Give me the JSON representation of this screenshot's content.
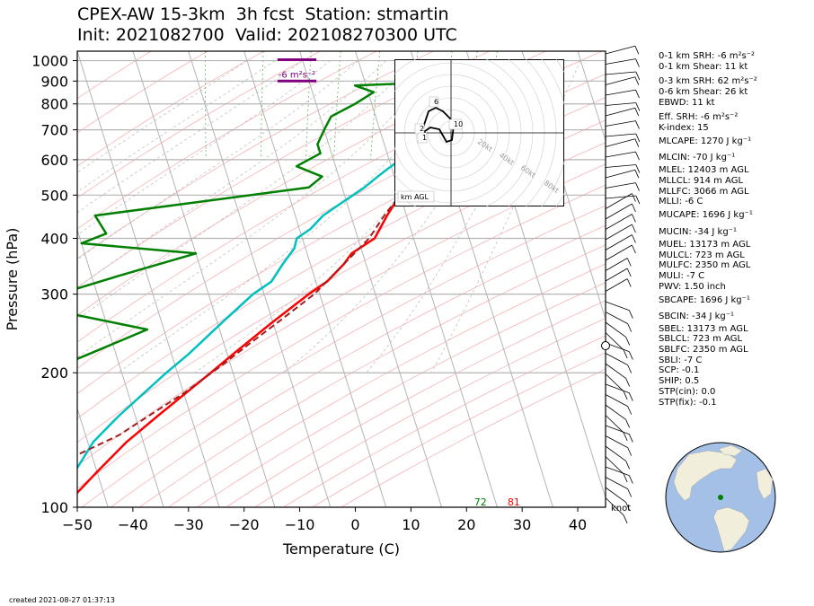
{
  "title_line1": "CPEX-AW 15-3km  3h fcst  Station: stmartin",
  "title_line2": "Init: 2021082700  Valid: 202108270300 UTC",
  "footer": "created 2021-08-27 01:37:13",
  "diagnostics": [
    "0-1 km SRH: -6 m²s⁻²",
    "0-1 km Shear: 11 kt",
    "0-3 km SRH: 62 m²s⁻²",
    "0-6 km Shear: 26 kt",
    "EBWD: 11 kt",
    "Eff. SRH: -6 m²s⁻²",
    "K-index: 15",
    "MLCAPE: 1270 J kg⁻¹",
    "MLCIN: -70 J kg⁻¹",
    "MLEL: 12403 m AGL",
    "MLLCL: 914 m AGL",
    "MLLFC: 3066 m AGL",
    "MLLI: -6 C",
    "MUCAPE: 1696 J kg⁻¹",
    "MUCIN: -34 J kg⁻¹",
    "MUEL: 13173 m AGL",
    "MULCL: 723 m AGL",
    "MULFC: 2350 m AGL",
    "MULI: -7 C",
    "PWV: 1.50 inch",
    "SBCAPE: 1696 J kg⁻¹",
    "SBCIN: -34 J kg⁻¹",
    "SBEL: 13173 m AGL",
    "SBLCL: 723 m AGL",
    "SBLFC: 2350 m AGL",
    "SBLI: -7 C",
    "SCP: -0.1",
    "SHIP: 0.5",
    "STP(cin): 0.0",
    "STP(fix): -0.1"
  ],
  "chart_data": {
    "type": "line",
    "subtype": "skew-T log-p diagram",
    "xlabel": "Temperature (C)",
    "ylabel": "Pressure (hPa)",
    "xlim": [
      -50,
      45
    ],
    "ylim": [
      1050,
      100
    ],
    "y_scale": "log",
    "x_ticks": [
      -50,
      -40,
      -30,
      -20,
      -10,
      0,
      10,
      20,
      30,
      40
    ],
    "y_ticks": [
      100,
      200,
      300,
      400,
      500,
      600,
      700,
      800,
      900,
      1000
    ],
    "skew_deg_per_log10_p": 25,
    "grid": true,
    "series": [
      {
        "role": "temperature",
        "color": "#ff0000",
        "points": [
          [
            30,
            1000
          ],
          [
            27.5,
            950
          ],
          [
            24.5,
            920
          ],
          [
            22,
            900
          ],
          [
            24,
            880
          ],
          [
            21.5,
            850
          ],
          [
            19,
            800
          ],
          [
            16,
            750
          ],
          [
            13,
            700
          ],
          [
            8,
            650
          ],
          [
            5,
            600
          ],
          [
            2,
            550
          ],
          [
            0,
            500
          ],
          [
            -3.5,
            450
          ],
          [
            -7,
            400
          ],
          [
            -12,
            370
          ],
          [
            -14,
            350
          ],
          [
            -18,
            320
          ],
          [
            -22,
            300
          ],
          [
            -30,
            260
          ],
          [
            -39,
            220
          ],
          [
            -44,
            200
          ],
          [
            -56,
            160
          ],
          [
            -63,
            140
          ],
          [
            -70,
            120
          ],
          [
            -78,
            100
          ]
        ]
      },
      {
        "role": "dewpoint",
        "color": "#00c0c0",
        "points": [
          [
            24,
            1000
          ],
          [
            22,
            950
          ],
          [
            18,
            900
          ],
          [
            12,
            880
          ],
          [
            12.5,
            850
          ],
          [
            11,
            800
          ],
          [
            9,
            750
          ],
          [
            6,
            700
          ],
          [
            3,
            650
          ],
          [
            2,
            600
          ],
          [
            -1,
            570
          ],
          [
            -3,
            550
          ],
          [
            -6,
            520
          ],
          [
            -11,
            480
          ],
          [
            -15,
            450
          ],
          [
            -18,
            420
          ],
          [
            -21,
            400
          ],
          [
            -22,
            380
          ],
          [
            -25,
            350
          ],
          [
            -28,
            320
          ],
          [
            -32,
            300
          ],
          [
            -39,
            260
          ],
          [
            -47,
            220
          ],
          [
            -52,
            200
          ],
          [
            -63,
            160
          ],
          [
            -69,
            140
          ],
          [
            -74,
            120
          ],
          [
            -76,
            105
          ],
          [
            -77,
            100
          ]
        ]
      },
      {
        "role": "parcel",
        "color": "#a02020",
        "dashed": true,
        "points": [
          [
            32,
            1000
          ],
          [
            28,
            950
          ],
          [
            25,
            900
          ],
          [
            22.5,
            850
          ],
          [
            20,
            800
          ],
          [
            17,
            750
          ],
          [
            14,
            700
          ],
          [
            10,
            650
          ],
          [
            7,
            600
          ],
          [
            3.5,
            550
          ],
          [
            0,
            500
          ],
          [
            -4,
            450
          ],
          [
            -8,
            400
          ],
          [
            -14,
            350
          ],
          [
            -21,
            300
          ],
          [
            -29,
            260
          ],
          [
            -36,
            230
          ],
          [
            -41,
            210
          ],
          [
            -50,
            180
          ],
          [
            -64,
            145
          ],
          [
            -80,
            120
          ],
          [
            -96,
            100
          ]
        ]
      },
      {
        "role": "wetbulb",
        "color": "#008000",
        "points": [
          [
            22,
            1000
          ],
          [
            21,
            980
          ],
          [
            20,
            950
          ],
          [
            18,
            900
          ],
          [
            -2,
            880
          ],
          [
            1,
            850
          ],
          [
            -3,
            800
          ],
          [
            -8,
            750
          ],
          [
            -10,
            700
          ],
          [
            -12,
            650
          ],
          [
            -12,
            620
          ],
          [
            -17,
            580
          ],
          [
            -13,
            550
          ],
          [
            -16,
            520
          ],
          [
            -56,
            450
          ],
          [
            -55,
            410
          ],
          [
            -60,
            390
          ],
          [
            -40,
            370
          ],
          [
            -55,
            330
          ],
          [
            -67,
            300
          ],
          [
            -71,
            280
          ],
          [
            -53,
            250
          ],
          [
            -65,
            220
          ],
          [
            -74,
            200
          ],
          [
            -80,
            175
          ],
          [
            -86,
            160
          ],
          [
            -93,
            130
          ],
          [
            -98,
            110
          ],
          [
            -100,
            100
          ]
        ]
      }
    ],
    "surface_labels": [
      {
        "text": "72",
        "color": "#008000",
        "x": 22.5
      },
      {
        "text": "81",
        "color": "#ff0000",
        "x": 28.5
      }
    ],
    "srh_annotations": [
      {
        "text": "-6 m²s⁻²",
        "color": "#800080",
        "x_range": [
          -14,
          -7
        ],
        "p": 900
      },
      {
        "text": "",
        "color": "#800080",
        "x_range": [
          -14,
          -7
        ],
        "p": 1005
      }
    ],
    "wind_barb_unit": "knot",
    "hodograph": {
      "rings_kt": [
        20,
        40,
        60,
        80
      ],
      "ring_labels": [
        "20kt",
        "40kt",
        "60kt",
        "80kt"
      ],
      "height_labels": [
        "6",
        "2",
        "1",
        "10"
      ],
      "legend": "km AGL"
    }
  },
  "colors": {
    "isotherm": "#b4b4b4",
    "isobar": "#b4b4b4",
    "dry_adiabat": "#f4a0a0",
    "moist_adiabat": "#b8b8b8",
    "mixing_ratio": "#5cb85c",
    "globe_land": "#f1eedb",
    "globe_ocean": "#a4c0e6"
  }
}
